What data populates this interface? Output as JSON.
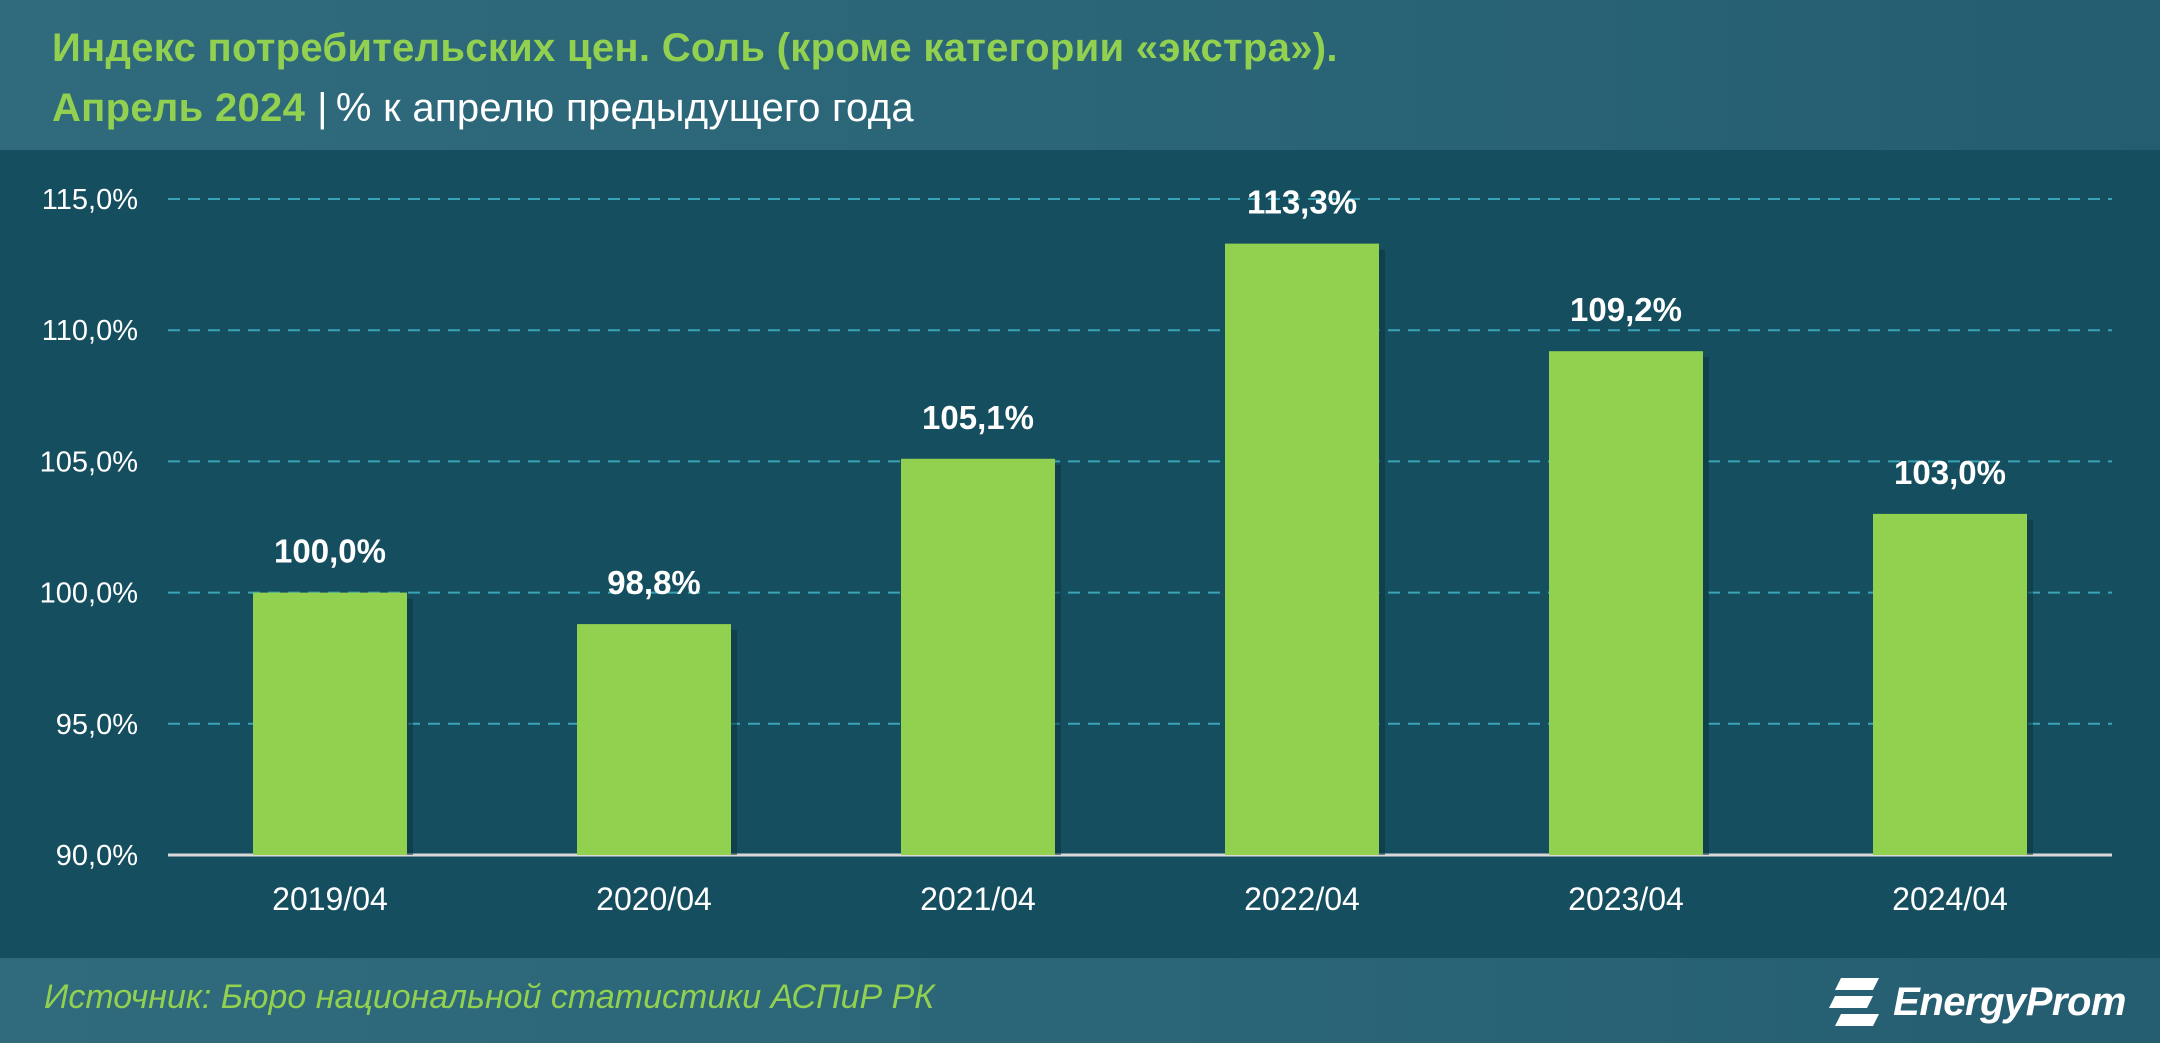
{
  "title": {
    "line1": "Индекс потребительских цен. Соль (кроме категории «экстра»).",
    "line2_main": "Апрель 2024",
    "separator": "|",
    "line2_sub": "% к апрелю предыдущего года"
  },
  "footer": {
    "source": "Источник: Бюро национальной статистики АСПиР РК",
    "logo_text": "EnergyProm",
    "logo_icon": "energyprom-logo-icon"
  },
  "colors": {
    "background": "#154e5f",
    "header": "#2a6577",
    "bar": "#92d050",
    "title_accent": "#92d050",
    "grid": "#3aa3b5",
    "text": "#ffffff"
  },
  "chart_data": {
    "type": "bar",
    "categories": [
      "2019/04",
      "2020/04",
      "2021/04",
      "2022/04",
      "2023/04",
      "2024/04"
    ],
    "values": [
      100.0,
      98.8,
      105.1,
      113.3,
      109.2,
      103.0
    ],
    "value_labels": [
      "100,0%",
      "98,8%",
      "105,1%",
      "113,3%",
      "109,2%",
      "103,0%"
    ],
    "ylim": [
      90,
      115
    ],
    "yticks": [
      90,
      95,
      100,
      105,
      110,
      115
    ],
    "ytick_labels": [
      "90,0%",
      "95,0%",
      "100,0%",
      "105,0%",
      "110,0%",
      "115,0%"
    ],
    "grid": true,
    "legend": "none"
  }
}
